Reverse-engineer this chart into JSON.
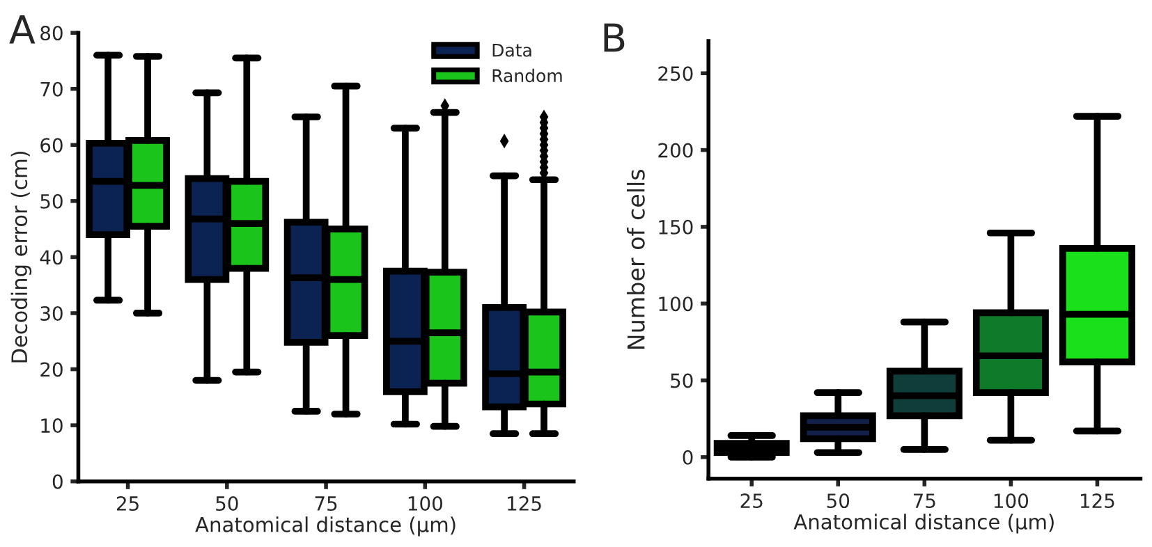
{
  "chart_data": [
    {
      "type": "box",
      "title": "A",
      "xlabel": "Anatomical distance (µm)",
      "ylabel": "Decoding error (cm)",
      "categories": [
        "25",
        "50",
        "75",
        "100",
        "125"
      ],
      "ylim": [
        0,
        80
      ],
      "yticks": [
        0,
        10,
        20,
        30,
        40,
        50,
        60,
        70,
        80
      ],
      "legend": "top right",
      "grid": false,
      "series": [
        {
          "name": "Data",
          "color": "#0a2352",
          "boxes": [
            {
              "low": 32.3,
              "q1": 44,
              "median": 53.5,
              "q3": 60.3,
              "high": 76
            },
            {
              "low": 18,
              "q1": 36,
              "median": 46.8,
              "q3": 54,
              "high": 69.3
            },
            {
              "low": 12.5,
              "q1": 24.8,
              "median": 36.3,
              "q3": 46.2,
              "high": 65
            },
            {
              "low": 10.2,
              "q1": 16,
              "median": 25,
              "q3": 37.5,
              "high": 63
            },
            {
              "low": 8.5,
              "q1": 13.3,
              "median": 19.2,
              "q3": 31,
              "high": 54.5,
              "outliers": [
                60.7
              ]
            }
          ]
        },
        {
          "name": "Random",
          "color": "#1ac41a",
          "boxes": [
            {
              "low": 30,
              "q1": 45.5,
              "median": 52.8,
              "q3": 60.8,
              "high": 75.8
            },
            {
              "low": 19.5,
              "q1": 38,
              "median": 46,
              "q3": 53.5,
              "high": 75.5
            },
            {
              "low": 12,
              "q1": 26,
              "median": 36,
              "q3": 45,
              "high": 70.5
            },
            {
              "low": 9.8,
              "q1": 17.5,
              "median": 26.5,
              "q3": 37.3,
              "high": 65.8,
              "outliers": [
                67
              ]
            },
            {
              "low": 8.5,
              "q1": 13.8,
              "median": 19.5,
              "q3": 30.2,
              "high": 53.8,
              "outliers": [
                55,
                56,
                57,
                58,
                59,
                60,
                61,
                62,
                63,
                64,
                65
              ]
            }
          ]
        }
      ]
    },
    {
      "type": "box",
      "title": "B",
      "xlabel": "Anatomical distance (µm)",
      "ylabel": "Number of cells",
      "categories": [
        "25",
        "50",
        "75",
        "100",
        "125"
      ],
      "ylim": [
        -14,
        271
      ],
      "yticks": [
        0,
        50,
        100,
        150,
        200,
        250
      ],
      "grid": false,
      "colors": [
        "#0b1a14",
        "#10204a",
        "#0f3d3a",
        "#0f7a2a",
        "#19e01a"
      ],
      "boxes": [
        {
          "low": 0,
          "q1": 3,
          "median": 6,
          "q3": 9,
          "high": 14
        },
        {
          "low": 3,
          "q1": 12,
          "median": 19.5,
          "q3": 27,
          "high": 42
        },
        {
          "low": 5,
          "q1": 27,
          "median": 40,
          "q3": 56,
          "high": 88
        },
        {
          "low": 11,
          "q1": 42,
          "median": 66,
          "q3": 94,
          "high": 146
        },
        {
          "low": 17,
          "q1": 62,
          "median": 93,
          "q3": 136,
          "high": 222
        }
      ]
    }
  ]
}
